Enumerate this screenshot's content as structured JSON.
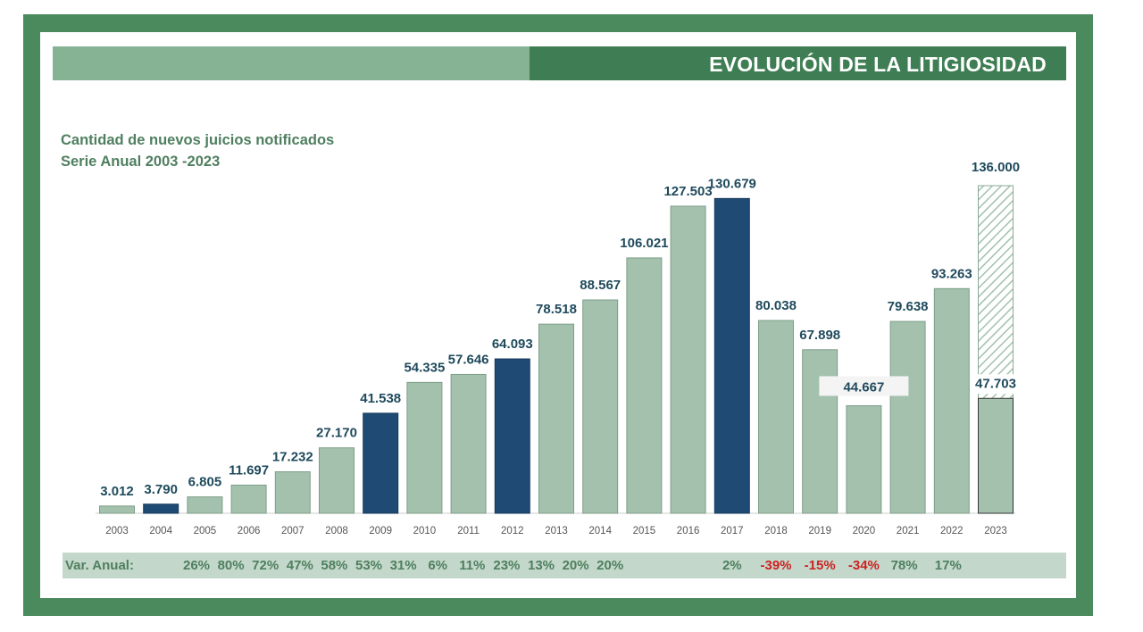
{
  "header": {
    "title": "EVOLUCIÓN DE LA LITIGIOSIDAD"
  },
  "subtitle": {
    "line1": "Cantidad de nuevos juicios notificados",
    "line2": "Serie Anual 2003 -2023"
  },
  "colors": {
    "bar_normal": "#a3c1ad",
    "bar_highlight": "#1e4a74",
    "value_text": "#1f4a5c",
    "positive_pct": "#4f7f5f",
    "negative_pct": "#cc2222",
    "frame": "#4a8a5c"
  },
  "chart_data": {
    "type": "bar",
    "categories": [
      "2003",
      "2004",
      "2005",
      "2006",
      "2007",
      "2008",
      "2009",
      "2010",
      "2011",
      "2012",
      "2013",
      "2014",
      "2015",
      "2016",
      "2017",
      "2018",
      "2019",
      "2020",
      "2021",
      "2022",
      "2023"
    ],
    "values": [
      3012,
      3790,
      6805,
      11697,
      17232,
      27170,
      41538,
      54335,
      57646,
      64093,
      78518,
      88567,
      106021,
      127503,
      130679,
      80038,
      67898,
      44667,
      79638,
      93263,
      136000
    ],
    "value_labels": [
      "3.012",
      "3.790",
      "6.805",
      "11.697",
      "17.232",
      "27.170",
      "41.538",
      "54.335",
      "57.646",
      "64.093",
      "78.518",
      "88.567",
      "106.021",
      "127.503",
      "130.679",
      "80.038",
      "67.898",
      "44.667",
      "79.638",
      "93.263",
      "136.000"
    ],
    "highlighted": [
      "2004",
      "2009",
      "2012",
      "2017"
    ],
    "projected": {
      "category": "2023",
      "total": 136000,
      "total_label": "136.000",
      "actual": 47703,
      "actual_label": "47.703"
    },
    "ylim": [
      0,
      136000
    ],
    "grid": false,
    "legend": "none"
  },
  "variation": {
    "label": "Var. Anual:",
    "items": [
      {
        "year": "2004",
        "text": "26%",
        "negative": false
      },
      {
        "year": "2005",
        "text": "80%",
        "negative": false
      },
      {
        "year": "2006",
        "text": "72%",
        "negative": false
      },
      {
        "year": "2007",
        "text": "47%",
        "negative": false
      },
      {
        "year": "2008",
        "text": "58%",
        "negative": false
      },
      {
        "year": "2009",
        "text": "53%",
        "negative": false
      },
      {
        "year": "2010",
        "text": "31%",
        "negative": false
      },
      {
        "year": "2011",
        "text": "6%",
        "negative": false
      },
      {
        "year": "2012",
        "text": "11%",
        "negative": false
      },
      {
        "year": "2013",
        "text": "23%",
        "negative": false
      },
      {
        "year": "2014",
        "text": "13%",
        "negative": false
      },
      {
        "year": "2015",
        "text": "20%",
        "negative": false
      },
      {
        "year": "2016",
        "text": "20%",
        "negative": false
      },
      {
        "year": "2017",
        "text": "2%",
        "negative": false
      },
      {
        "year": "2018",
        "text": "-39%",
        "negative": true
      },
      {
        "year": "2019",
        "text": "-15%",
        "negative": true
      },
      {
        "year": "2020",
        "text": "-34%",
        "negative": true
      },
      {
        "year": "2021",
        "text": "78%",
        "negative": false
      },
      {
        "year": "2022",
        "text": "17%",
        "negative": false
      }
    ]
  }
}
